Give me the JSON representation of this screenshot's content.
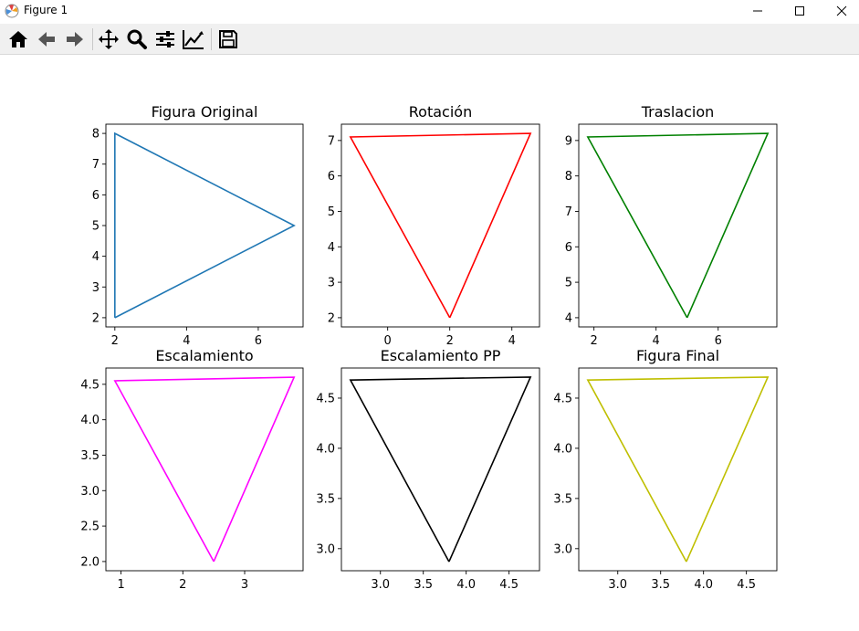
{
  "window": {
    "title": "Figure 1",
    "app_icon": "matplotlib-icon",
    "controls": [
      "minimize-icon",
      "maximize-icon",
      "close-icon"
    ]
  },
  "toolbar": {
    "buttons": [
      "home-icon",
      "back-arrow-icon",
      "forward-arrow-icon",
      "pan-icon",
      "zoom-icon",
      "configure-subplots-icon",
      "edit-axis-icon",
      "save-icon"
    ]
  },
  "chart_data": [
    {
      "type": "line",
      "title": "Figura Original",
      "color": "#1f77b4",
      "x": [
        2,
        2,
        7,
        2
      ],
      "y": [
        2,
        8,
        5,
        2
      ],
      "xlim": [
        1.75,
        7.25
      ],
      "ylim": [
        1.7,
        8.3
      ],
      "xticks": [
        2,
        4,
        6
      ],
      "yticks": [
        2,
        3,
        4,
        5,
        6,
        7,
        8
      ],
      "xtick_labels": [
        "2",
        "4",
        "6"
      ],
      "ytick_labels": [
        "2",
        "3",
        "4",
        "5",
        "6",
        "7",
        "8"
      ]
    },
    {
      "type": "line",
      "title": "Rotación",
      "color": "#ff0000",
      "x": [
        2.0,
        -1.2,
        4.6,
        2.0
      ],
      "y": [
        2.0,
        7.1,
        7.2,
        2.0
      ],
      "xlim": [
        -1.49,
        4.89
      ],
      "ylim": [
        1.74,
        7.46
      ],
      "xticks": [
        0,
        2,
        4
      ],
      "yticks": [
        2,
        3,
        4,
        5,
        6,
        7
      ],
      "xtick_labels": [
        "0",
        "2",
        "4"
      ],
      "ytick_labels": [
        "2",
        "3",
        "4",
        "5",
        "6",
        "7"
      ]
    },
    {
      "type": "line",
      "title": "Traslacion",
      "color": "#008000",
      "x": [
        5.0,
        1.8,
        7.6,
        5.0
      ],
      "y": [
        4.0,
        9.1,
        9.2,
        4.0
      ],
      "xlim": [
        1.51,
        7.89
      ],
      "ylim": [
        3.74,
        9.46
      ],
      "xticks": [
        2,
        4,
        6
      ],
      "yticks": [
        4,
        5,
        6,
        7,
        8,
        9
      ],
      "xtick_labels": [
        "2",
        "4",
        "6"
      ],
      "ytick_labels": [
        "4",
        "5",
        "6",
        "7",
        "8",
        "9"
      ]
    },
    {
      "type": "line",
      "title": "Escalamiento",
      "color": "#ff00ff",
      "x": [
        2.5,
        0.9,
        3.8,
        2.5
      ],
      "y": [
        2.0,
        4.55,
        4.6,
        2.0
      ],
      "xlim": [
        0.755,
        3.945
      ],
      "ylim": [
        1.87,
        4.73
      ],
      "xticks": [
        1,
        2,
        3
      ],
      "yticks": [
        2.0,
        2.5,
        3.0,
        3.5,
        4.0,
        4.5
      ],
      "xtick_labels": [
        "1",
        "2",
        "3"
      ],
      "ytick_labels": [
        "2.0",
        "2.5",
        "3.0",
        "3.5",
        "4.0",
        "4.5"
      ]
    },
    {
      "type": "line",
      "title": "Escalamiento PP",
      "color": "#000000",
      "x": [
        3.8,
        2.65,
        4.75,
        3.8
      ],
      "y": [
        2.87,
        4.68,
        4.71,
        2.87
      ],
      "xlim": [
        2.545,
        4.855
      ],
      "ylim": [
        2.78,
        4.8
      ],
      "xticks": [
        3.0,
        3.5,
        4.0,
        4.5
      ],
      "yticks": [
        3.0,
        3.5,
        4.0,
        4.5
      ],
      "xtick_labels": [
        "3.0",
        "3.5",
        "4.0",
        "4.5"
      ],
      "ytick_labels": [
        "3.0",
        "3.5",
        "4.0",
        "4.5"
      ]
    },
    {
      "type": "line",
      "title": "Figura Final",
      "color": "#bfbf00",
      "x": [
        3.8,
        2.65,
        4.75,
        3.8
      ],
      "y": [
        2.87,
        4.68,
        4.71,
        2.87
      ],
      "xlim": [
        2.545,
        4.855
      ],
      "ylim": [
        2.78,
        4.8
      ],
      "xticks": [
        3.0,
        3.5,
        4.0,
        4.5
      ],
      "yticks": [
        3.0,
        3.5,
        4.0,
        4.5
      ],
      "xtick_labels": [
        "3.0",
        "3.5",
        "4.0",
        "4.5"
      ],
      "ytick_labels": [
        "3.0",
        "3.5",
        "4.0",
        "4.5"
      ]
    }
  ]
}
